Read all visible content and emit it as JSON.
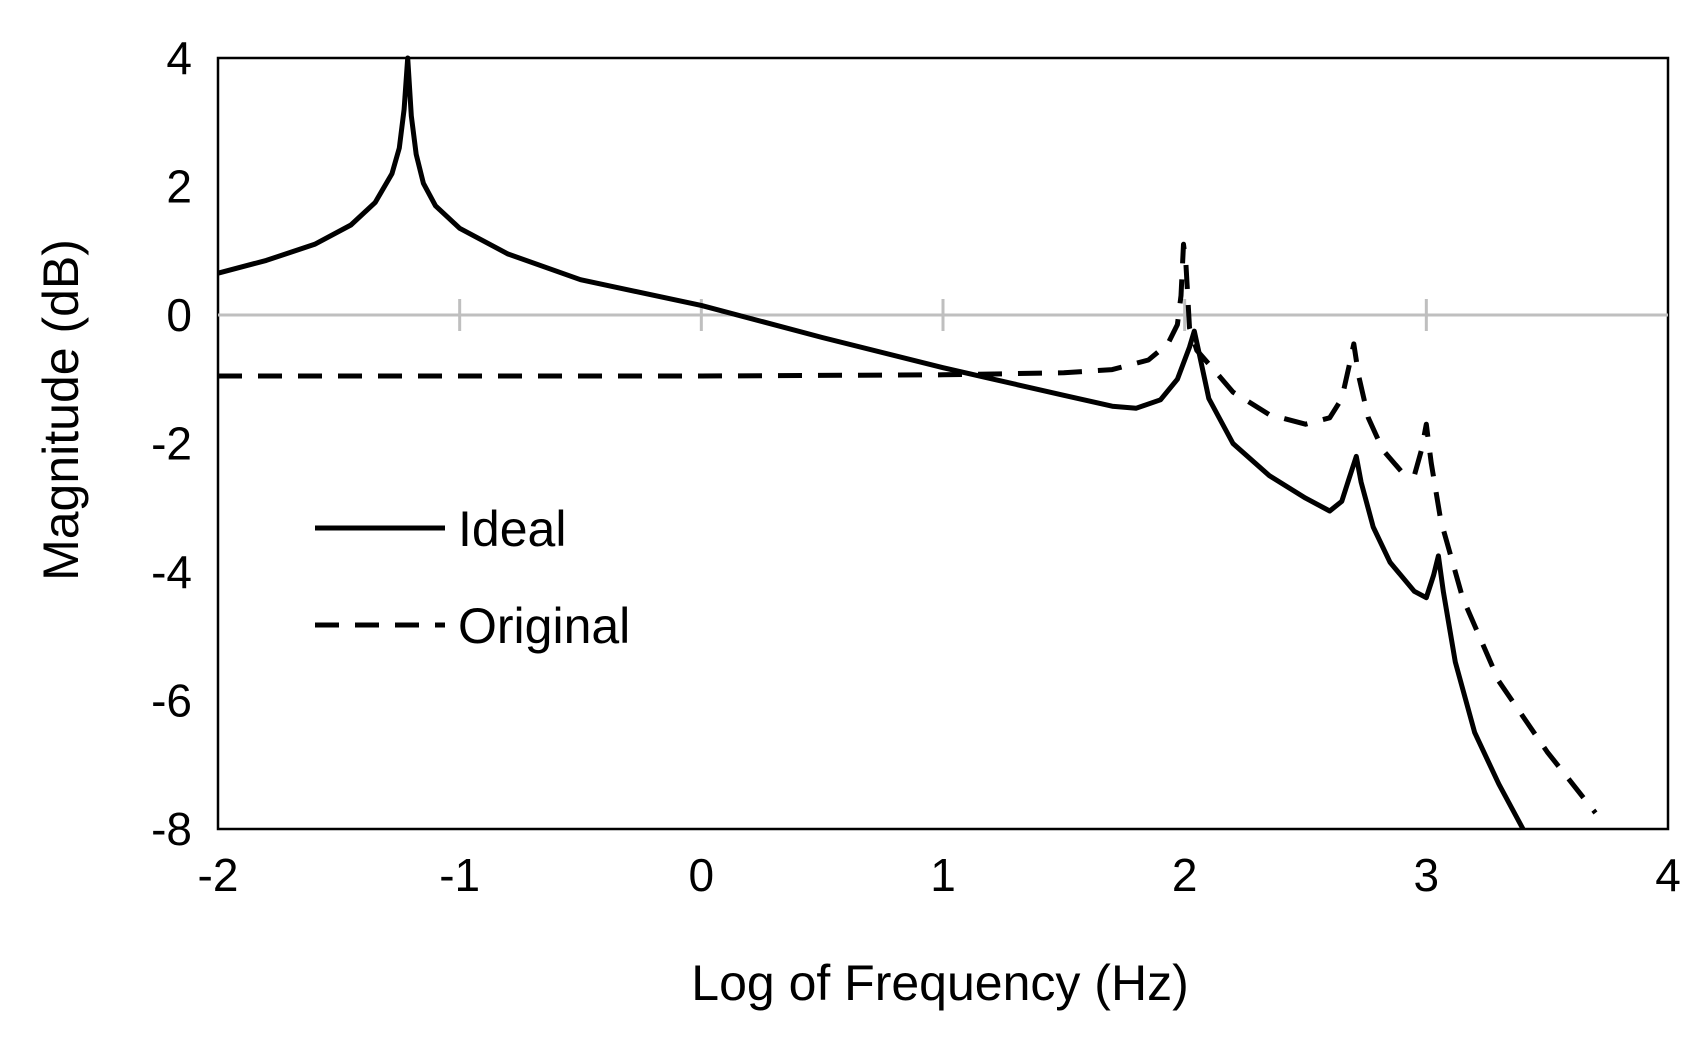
{
  "chart_data": {
    "type": "line",
    "title": "",
    "xlabel": "Log of Frequency (Hz)",
    "ylabel": "Magnitude (dB)",
    "xlim": [
      -2,
      4
    ],
    "ylim": [
      -8,
      4
    ],
    "xticks": [
      -2,
      -1,
      0,
      1,
      2,
      3,
      4
    ],
    "yticks": [
      4,
      2,
      0,
      -2,
      -4,
      -6,
      -8
    ],
    "xtick_labels": [
      "-2",
      "-1",
      "0",
      "1",
      "2",
      "3",
      "4"
    ],
    "ytick_labels": [
      "4",
      "2",
      "0",
      "-2",
      "-4",
      "-6",
      "-8"
    ],
    "reference_line_y": 0,
    "grid": false,
    "legend_position": "left-center",
    "series": [
      {
        "name": "Ideal",
        "style": "solid",
        "color": "#000000",
        "points": [
          [
            -2.0,
            0.65
          ],
          [
            -1.8,
            0.85
          ],
          [
            -1.6,
            1.1
          ],
          [
            -1.45,
            1.4
          ],
          [
            -1.35,
            1.75
          ],
          [
            -1.28,
            2.2
          ],
          [
            -1.25,
            2.6
          ],
          [
            -1.23,
            3.2
          ],
          [
            -1.215,
            4.0
          ],
          [
            -1.2,
            3.1
          ],
          [
            -1.18,
            2.5
          ],
          [
            -1.15,
            2.05
          ],
          [
            -1.1,
            1.7
          ],
          [
            -1.0,
            1.35
          ],
          [
            -0.8,
            0.95
          ],
          [
            -0.5,
            0.55
          ],
          [
            0.0,
            0.15
          ],
          [
            0.5,
            -0.35
          ],
          [
            1.0,
            -0.82
          ],
          [
            1.5,
            -1.25
          ],
          [
            1.7,
            -1.42
          ],
          [
            1.8,
            -1.45
          ],
          [
            1.9,
            -1.32
          ],
          [
            1.97,
            -1.0
          ],
          [
            2.02,
            -0.5
          ],
          [
            2.04,
            -0.25
          ],
          [
            2.06,
            -0.6
          ],
          [
            2.1,
            -1.3
          ],
          [
            2.2,
            -2.0
          ],
          [
            2.35,
            -2.5
          ],
          [
            2.5,
            -2.85
          ],
          [
            2.6,
            -3.05
          ],
          [
            2.65,
            -2.9
          ],
          [
            2.68,
            -2.55
          ],
          [
            2.71,
            -2.2
          ],
          [
            2.73,
            -2.6
          ],
          [
            2.78,
            -3.3
          ],
          [
            2.85,
            -3.85
          ],
          [
            2.95,
            -4.3
          ],
          [
            3.0,
            -4.4
          ],
          [
            3.03,
            -4.05
          ],
          [
            3.05,
            -3.75
          ],
          [
            3.07,
            -4.3
          ],
          [
            3.12,
            -5.4
          ],
          [
            3.2,
            -6.5
          ],
          [
            3.3,
            -7.3
          ],
          [
            3.4,
            -8.0
          ]
        ]
      },
      {
        "name": "Original",
        "style": "dashed",
        "color": "#000000",
        "points": [
          [
            -2.0,
            -0.95
          ],
          [
            0.0,
            -0.95
          ],
          [
            1.0,
            -0.93
          ],
          [
            1.5,
            -0.9
          ],
          [
            1.7,
            -0.85
          ],
          [
            1.85,
            -0.7
          ],
          [
            1.93,
            -0.45
          ],
          [
            1.97,
            -0.15
          ],
          [
            1.985,
            0.3
          ],
          [
            1.995,
            1.1
          ],
          [
            2.005,
            0.8
          ],
          [
            2.02,
            -0.2
          ],
          [
            2.05,
            -0.55
          ],
          [
            2.12,
            -0.85
          ],
          [
            2.2,
            -1.2
          ],
          [
            2.35,
            -1.55
          ],
          [
            2.5,
            -1.7
          ],
          [
            2.6,
            -1.6
          ],
          [
            2.65,
            -1.3
          ],
          [
            2.68,
            -0.8
          ],
          [
            2.7,
            -0.45
          ],
          [
            2.72,
            -0.95
          ],
          [
            2.76,
            -1.6
          ],
          [
            2.82,
            -2.1
          ],
          [
            2.9,
            -2.45
          ],
          [
            2.95,
            -2.5
          ],
          [
            2.98,
            -2.1
          ],
          [
            3.0,
            -1.7
          ],
          [
            3.02,
            -2.3
          ],
          [
            3.06,
            -3.2
          ],
          [
            3.15,
            -4.4
          ],
          [
            3.3,
            -5.7
          ],
          [
            3.5,
            -6.8
          ],
          [
            3.7,
            -7.75
          ]
        ]
      }
    ]
  }
}
